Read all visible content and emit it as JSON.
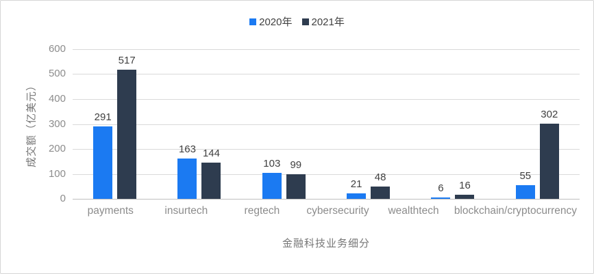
{
  "chart_data": {
    "type": "bar",
    "title": "",
    "categories": [
      "payments",
      "insurtech",
      "regtech",
      "cybersecurity",
      "wealthtech",
      "blockchain/cryptocurrency"
    ],
    "series": [
      {
        "name": "2020年",
        "color": "#1b7af2",
        "values": [
          291,
          163,
          103,
          21,
          6,
          55
        ]
      },
      {
        "name": "2021年",
        "color": "#2e3c4f",
        "values": [
          517,
          144,
          99,
          48,
          16,
          302
        ]
      }
    ],
    "xlabel": "金融科技业务细分",
    "ylabel": "成交额（亿美元）",
    "ylim": [
      0,
      600
    ],
    "yticks": [
      0,
      100,
      200,
      300,
      400,
      500,
      600
    ],
    "grid": true,
    "legend_position": "top"
  },
  "colors": {
    "gridline": "#d9d9d9",
    "axis_line": "#bfbfbf",
    "tick_text": "#8c8c8c",
    "value_label_text": "#3f3f3f",
    "axis_title_text": "#767676",
    "border": "#d6d6d6"
  }
}
